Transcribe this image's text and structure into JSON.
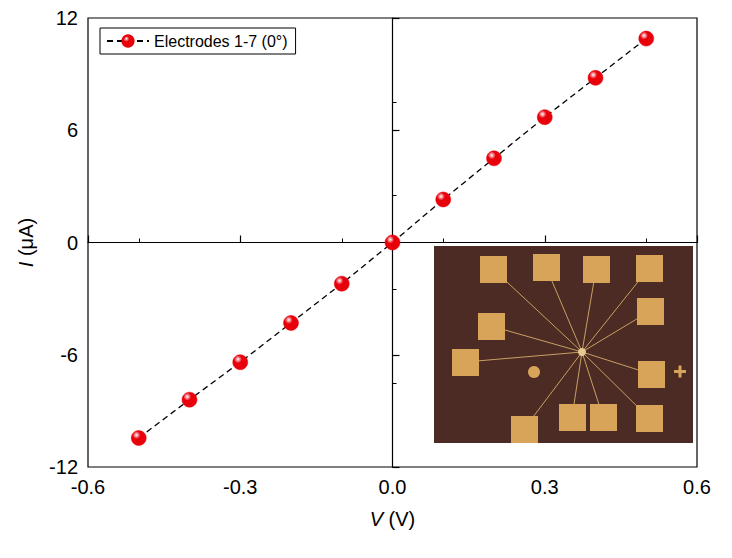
{
  "chart_data": {
    "type": "line",
    "x": [
      -0.5,
      -0.4,
      -0.3,
      -0.2,
      -0.1,
      0.0,
      0.1,
      0.2,
      0.3,
      0.4,
      0.5
    ],
    "series": [
      {
        "name": "Electrodes 1-7 (0°)",
        "color": "#e8000b",
        "values": [
          -10.45,
          -8.4,
          -6.4,
          -4.3,
          -2.2,
          0.0,
          2.3,
          4.5,
          6.7,
          8.8,
          10.9
        ],
        "marker": "circle",
        "line_style": "dashed"
      }
    ],
    "x_label": "V (V)",
    "y_label": "I (μA)",
    "xlim": [
      -0.6,
      0.6
    ],
    "xticks": [
      -0.6,
      -0.3,
      {
        "value": 0,
        "label": "0.0"
      },
      0.3,
      0.6
    ],
    "ylim": [
      -12,
      12
    ],
    "yticks": [
      -12,
      -6,
      0,
      6,
      12
    ],
    "grid": false,
    "legend": "upper left"
  }
}
